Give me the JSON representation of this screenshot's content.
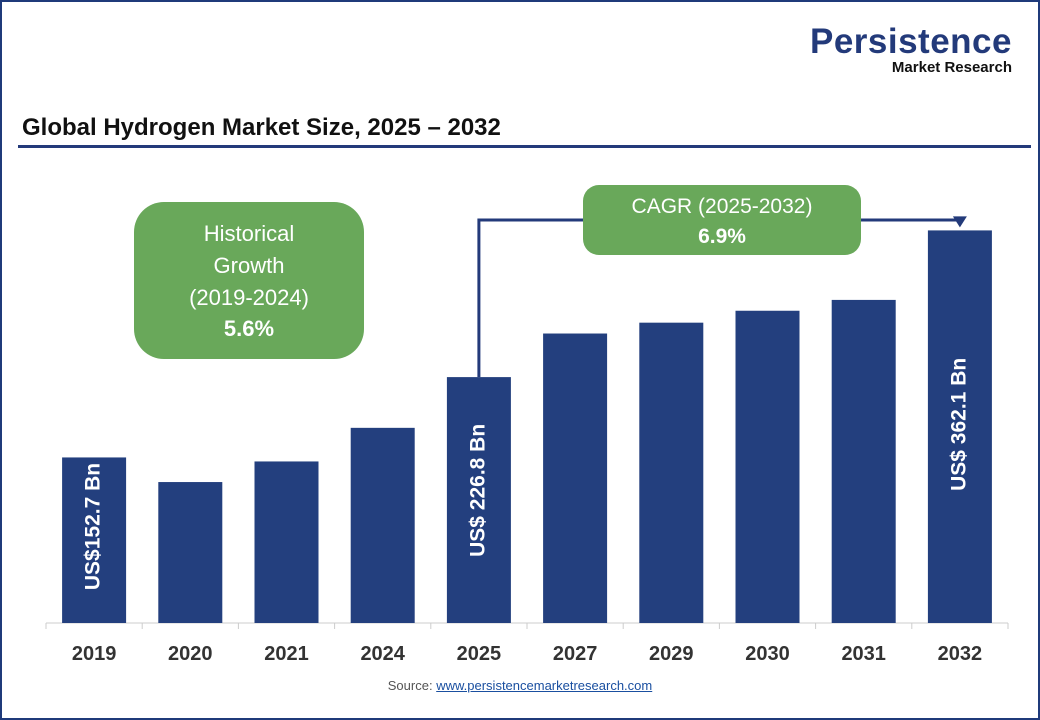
{
  "logo": {
    "name": "Persistence",
    "tagline": "Market Research"
  },
  "title": "Global Hydrogen Market Size, 2025 – 2032",
  "source": {
    "label": "Source:",
    "link": "www.persistencemarketresearch.com"
  },
  "colors": {
    "bar": "#233f7e",
    "callout": "#69a85a",
    "axis": "#cccccc",
    "connector": "#233a7a"
  },
  "callouts": {
    "historical": {
      "lines": [
        "Historical",
        "Growth",
        "(2019-2024)"
      ],
      "value": "5.6%"
    },
    "cagr": {
      "label": "CAGR (2025-2032)",
      "value": "6.9%"
    }
  },
  "chart_data": {
    "type": "bar",
    "title": "Global Hydrogen Market Size, 2025 – 2032",
    "categories": [
      "2019",
      "2020",
      "2021",
      "2024",
      "2025",
      "2027",
      "2029",
      "2030",
      "2031",
      "2032"
    ],
    "values": [
      152.7,
      130,
      149,
      180,
      226.8,
      267,
      277,
      288,
      298,
      362.1
    ],
    "ylim": [
      0,
      380
    ],
    "data_labels": [
      {
        "category": "2019",
        "text": "US$152.7  Bn"
      },
      {
        "category": "2025",
        "text": "US$ 226.8  Bn"
      },
      {
        "category": "2032",
        "text": "US$ 362.1 Bn"
      }
    ],
    "grid": false,
    "legend": "none"
  }
}
